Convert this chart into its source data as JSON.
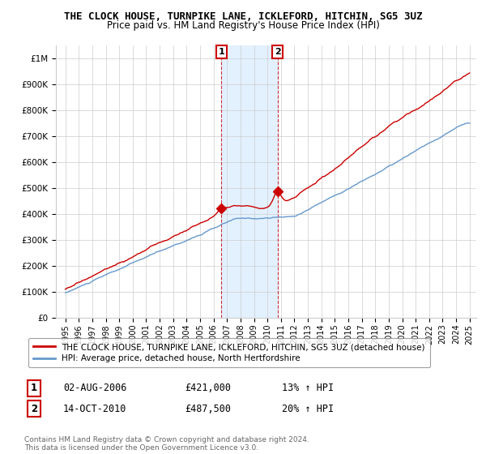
{
  "title": "THE CLOCK HOUSE, TURNPIKE LANE, ICKLEFORD, HITCHIN, SG5 3UZ",
  "subtitle": "Price paid vs. HM Land Registry's House Price Index (HPI)",
  "legend_line1": "THE CLOCK HOUSE, TURNPIKE LANE, ICKLEFORD, HITCHIN, SG5 3UZ (detached house)",
  "legend_line2": "HPI: Average price, detached house, North Hertfordshire",
  "annotation1_label": "1",
  "annotation1_date": "02-AUG-2006",
  "annotation1_price": "£421,000",
  "annotation1_hpi": "13% ↑ HPI",
  "annotation2_label": "2",
  "annotation2_date": "14-OCT-2010",
  "annotation2_price": "£487,500",
  "annotation2_hpi": "20% ↑ HPI",
  "footer": "Contains HM Land Registry data © Crown copyright and database right 2024.\nThis data is licensed under the Open Government Licence v3.0.",
  "red_color": "#cc0000",
  "blue_color": "#6699cc",
  "shade_color": "#ddeeff",
  "ylim": [
    0,
    1050000
  ],
  "yticks": [
    0,
    100000,
    200000,
    300000,
    400000,
    500000,
    600000,
    700000,
    800000,
    900000,
    1000000
  ],
  "ytick_labels": [
    "£0",
    "£100K",
    "£200K",
    "£300K",
    "£400K",
    "£500K",
    "£600K",
    "£700K",
    "£800K",
    "£900K",
    "£1M"
  ]
}
